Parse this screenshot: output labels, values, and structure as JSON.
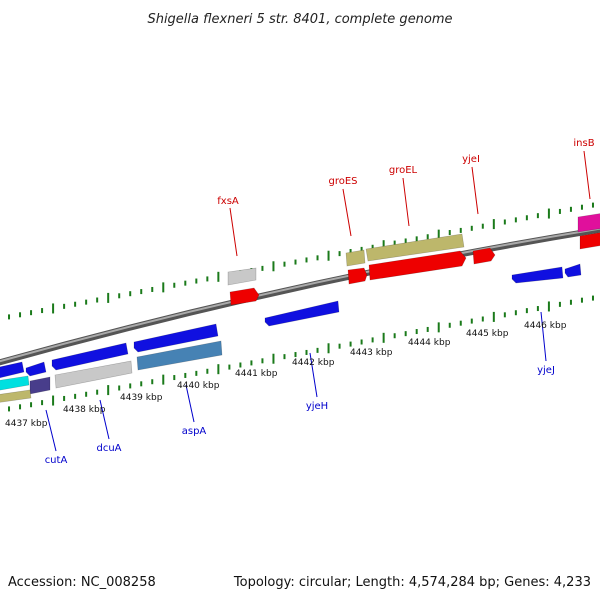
{
  "title": "Shigella flexneri 5 str. 8401, complete genome",
  "footer": {
    "accession": "Accession: NC_008258",
    "summary": "Topology: circular; Length: 4,574,284 bp; Genes: 4,233"
  },
  "colors": {
    "backbone": "#888888",
    "tick": "#1a7a1a",
    "forward_label": "#cc0000",
    "reverse_label": "#0000cc",
    "blue": "#1010e0",
    "red": "#ee0000",
    "khaki": "#bdb76b",
    "grey": "#c8c8c8",
    "steel": "#4682b4",
    "magenta": "#e0109c",
    "cyan": "#00e0e0",
    "slate": "#483d8b"
  },
  "ticks": [
    "4437 kbp",
    "4438 kbp",
    "4439 kbp",
    "4440 kbp",
    "4441 kbp",
    "4442 kbp",
    "4443 kbp",
    "4444 kbp",
    "4445 kbp",
    "4446 kbp"
  ],
  "forward_labels": [
    "fxsA",
    "groES",
    "groEL",
    "yjeI",
    "insB"
  ],
  "reverse_labels": [
    "cutA",
    "dcuA",
    "aspA",
    "yjeH",
    "yjeJ"
  ]
}
